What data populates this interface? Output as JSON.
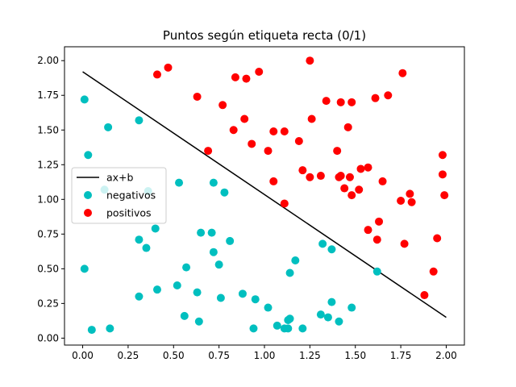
{
  "chart_data": {
    "type": "scatter",
    "title": "Puntos según etiqueta recta (0/1)",
    "xlabel": "",
    "ylabel": "",
    "xlim": [
      -0.1,
      2.1
    ],
    "ylim": [
      -0.05,
      2.1
    ],
    "xticks": [
      "0.00",
      "0.25",
      "0.50",
      "0.75",
      "1.00",
      "1.25",
      "1.50",
      "1.75",
      "2.00"
    ],
    "yticks": [
      "0.00",
      "0.25",
      "0.50",
      "0.75",
      "1.00",
      "1.25",
      "1.50",
      "1.75",
      "2.00"
    ],
    "grid": false,
    "legend_position": "center-left",
    "line": {
      "name": "ax+b",
      "color": "#000000",
      "points": [
        [
          0.0,
          1.92
        ],
        [
          2.0,
          0.15
        ]
      ]
    },
    "series": [
      {
        "name": "negativos",
        "color": "#00bfbf",
        "points": [
          [
            0.01,
            1.72
          ],
          [
            0.03,
            1.32
          ],
          [
            0.14,
            1.52
          ],
          [
            0.31,
            1.57
          ],
          [
            0.12,
            1.07
          ],
          [
            0.36,
            1.06
          ],
          [
            0.53,
            1.12
          ],
          [
            0.72,
            1.12
          ],
          [
            0.78,
            1.05
          ],
          [
            0.01,
            0.5
          ],
          [
            0.31,
            0.71
          ],
          [
            0.35,
            0.65
          ],
          [
            0.4,
            0.79
          ],
          [
            0.57,
            0.51
          ],
          [
            0.65,
            0.76
          ],
          [
            0.71,
            0.76
          ],
          [
            0.72,
            0.62
          ],
          [
            0.75,
            0.53
          ],
          [
            0.81,
            0.7
          ],
          [
            0.31,
            0.3
          ],
          [
            0.41,
            0.35
          ],
          [
            0.52,
            0.38
          ],
          [
            0.63,
            0.33
          ],
          [
            0.56,
            0.16
          ],
          [
            0.64,
            0.12
          ],
          [
            0.76,
            0.29
          ],
          [
            0.88,
            0.32
          ],
          [
            0.95,
            0.28
          ],
          [
            1.02,
            0.22
          ],
          [
            0.94,
            0.07
          ],
          [
            1.07,
            0.09
          ],
          [
            1.11,
            0.07
          ],
          [
            1.13,
            0.07
          ],
          [
            1.13,
            0.13
          ],
          [
            1.14,
            0.14
          ],
          [
            1.17,
            0.56
          ],
          [
            1.14,
            0.47
          ],
          [
            1.21,
            0.07
          ],
          [
            1.32,
            0.68
          ],
          [
            1.37,
            0.64
          ],
          [
            1.31,
            0.17
          ],
          [
            1.35,
            0.15
          ],
          [
            1.37,
            0.26
          ],
          [
            1.41,
            0.12
          ],
          [
            1.48,
            0.22
          ],
          [
            1.62,
            0.48
          ],
          [
            0.05,
            0.06
          ],
          [
            0.15,
            0.07
          ]
        ]
      },
      {
        "name": "positivos",
        "color": "#ff0000",
        "points": [
          [
            0.41,
            1.9
          ],
          [
            0.47,
            1.95
          ],
          [
            0.63,
            1.74
          ],
          [
            0.77,
            1.68
          ],
          [
            0.84,
            1.88
          ],
          [
            0.9,
            1.87
          ],
          [
            0.97,
            1.92
          ],
          [
            1.25,
            2.0
          ],
          [
            1.76,
            1.91
          ],
          [
            0.69,
            1.35
          ],
          [
            0.83,
            1.5
          ],
          [
            0.89,
            1.58
          ],
          [
            0.93,
            1.4
          ],
          [
            1.02,
            1.35
          ],
          [
            1.05,
            1.49
          ],
          [
            1.11,
            1.49
          ],
          [
            1.19,
            1.42
          ],
          [
            1.26,
            1.58
          ],
          [
            1.34,
            1.71
          ],
          [
            1.42,
            1.7
          ],
          [
            1.48,
            1.7
          ],
          [
            1.46,
            1.52
          ],
          [
            1.61,
            1.73
          ],
          [
            1.68,
            1.75
          ],
          [
            1.4,
            1.35
          ],
          [
            1.05,
            1.13
          ],
          [
            1.21,
            1.21
          ],
          [
            1.25,
            1.16
          ],
          [
            1.31,
            1.17
          ],
          [
            1.42,
            1.17
          ],
          [
            1.41,
            1.16
          ],
          [
            1.47,
            1.16
          ],
          [
            1.53,
            1.22
          ],
          [
            1.57,
            1.23
          ],
          [
            1.44,
            1.08
          ],
          [
            1.48,
            1.03
          ],
          [
            1.52,
            1.07
          ],
          [
            1.65,
            1.13
          ],
          [
            1.11,
            0.97
          ],
          [
            1.75,
            0.99
          ],
          [
            1.8,
            1.04
          ],
          [
            1.81,
            0.98
          ],
          [
            1.63,
            0.84
          ],
          [
            1.57,
            0.78
          ],
          [
            1.62,
            0.71
          ],
          [
            1.77,
            0.68
          ],
          [
            1.95,
            0.72
          ],
          [
            1.98,
            1.32
          ],
          [
            1.98,
            1.18
          ],
          [
            1.99,
            1.03
          ],
          [
            1.93,
            0.48
          ],
          [
            1.88,
            0.31
          ]
        ]
      }
    ]
  }
}
